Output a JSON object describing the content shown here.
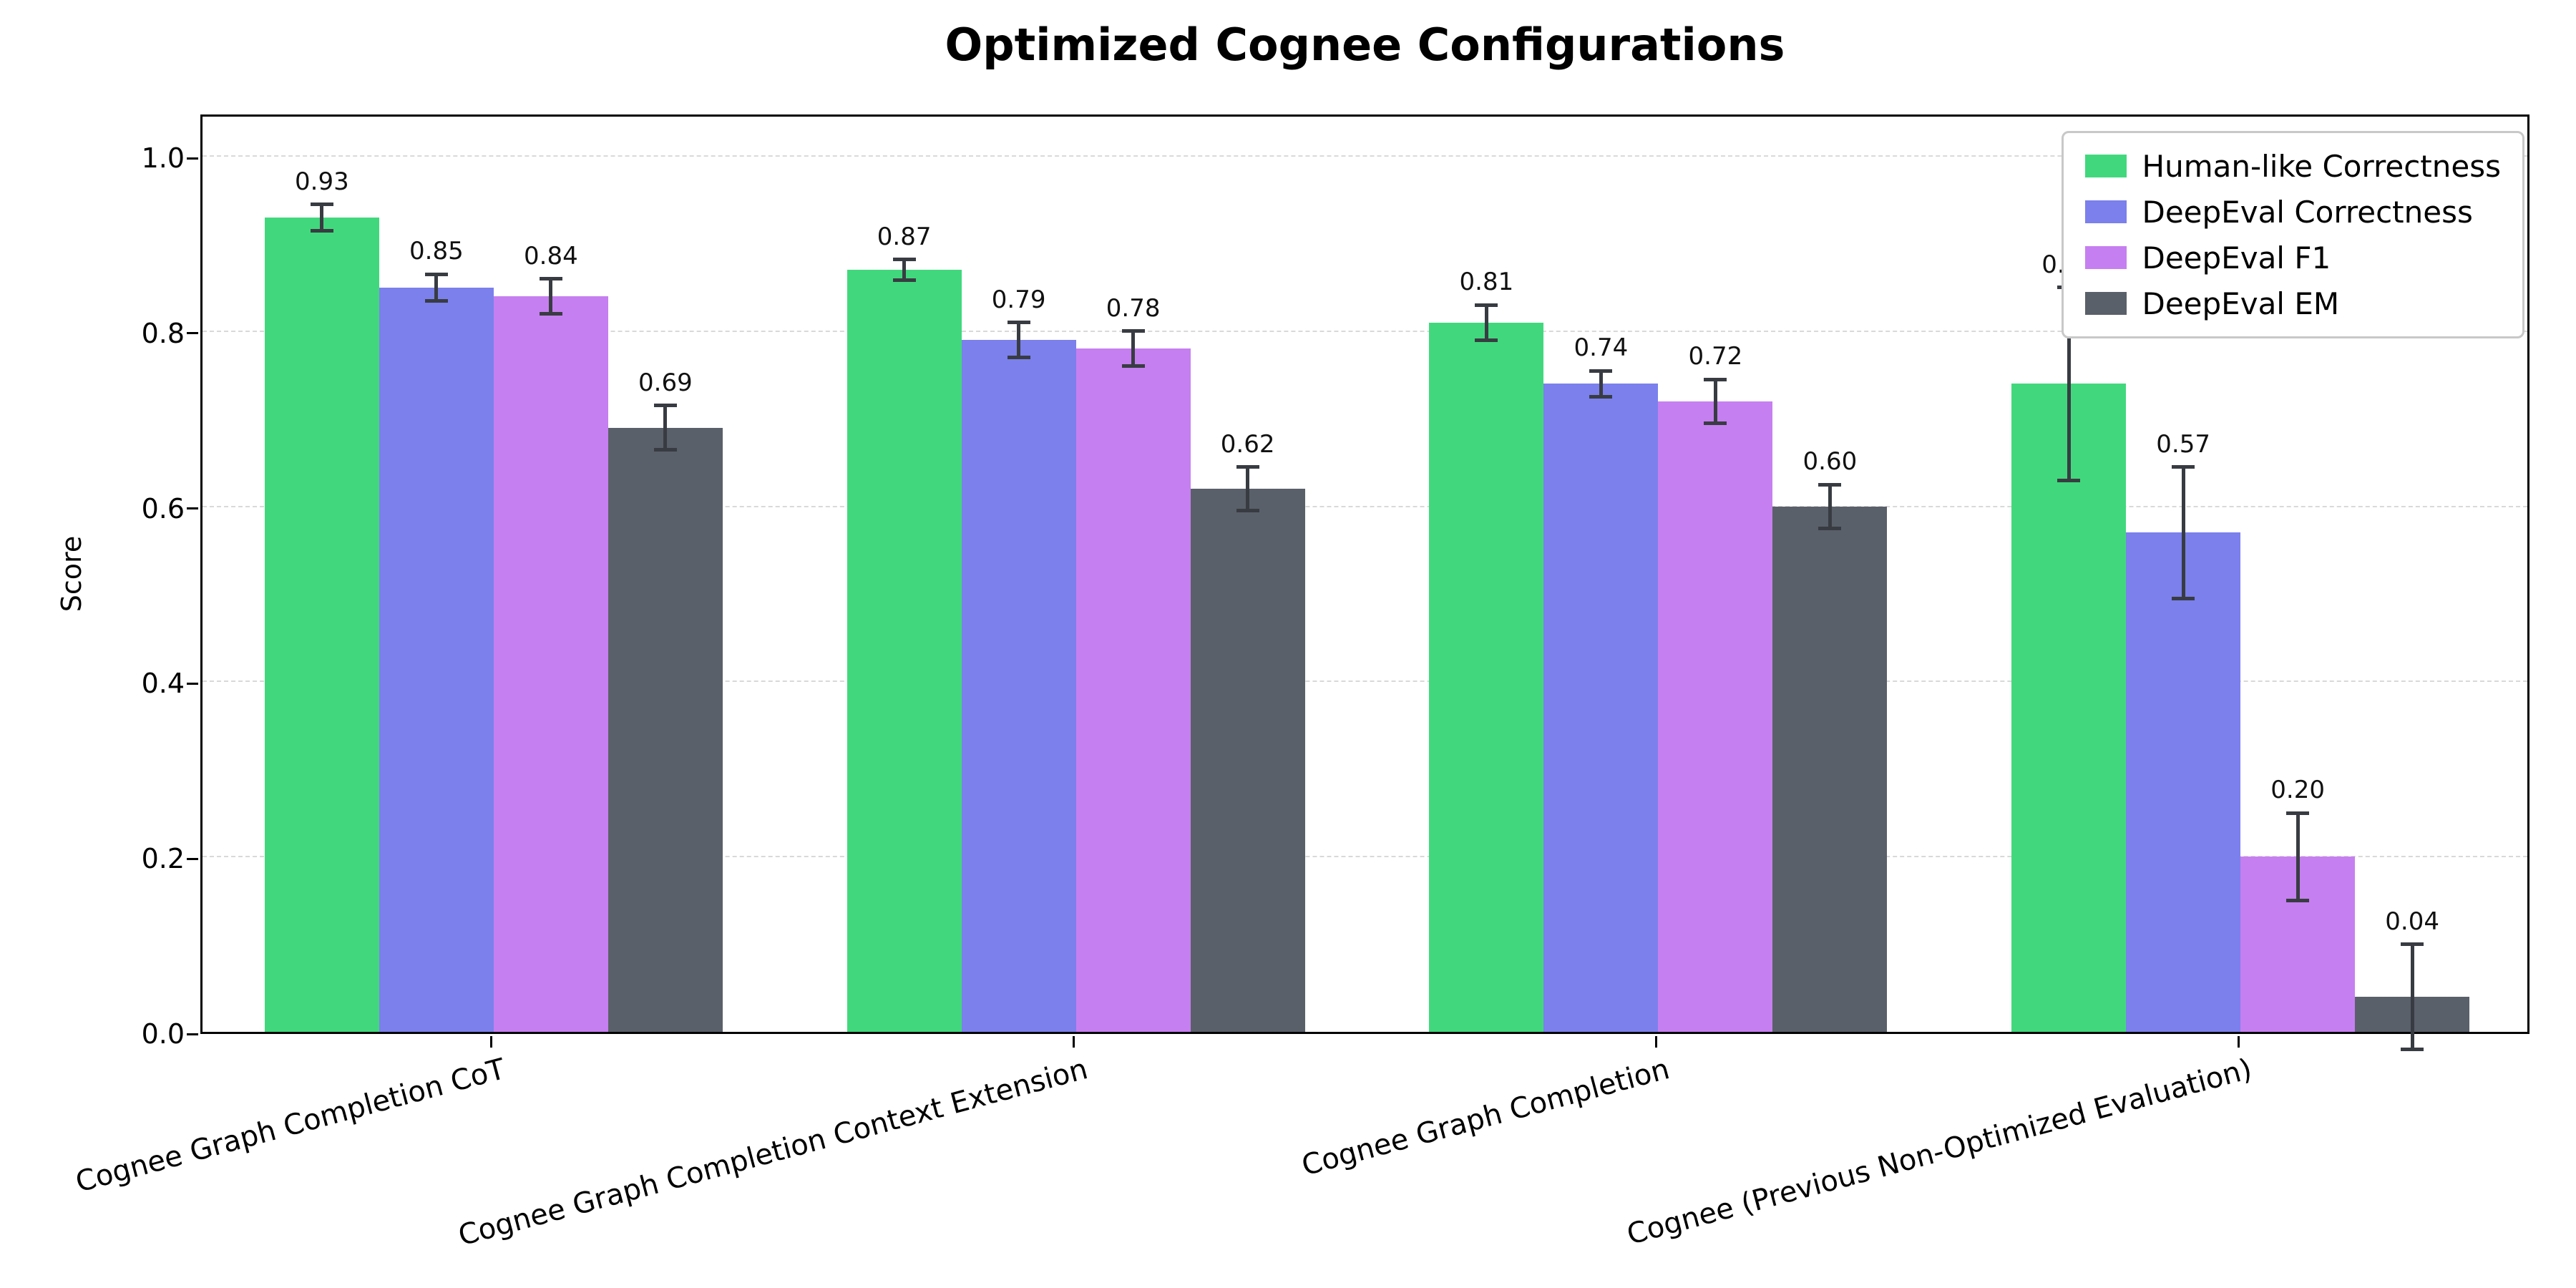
{
  "chart_data": {
    "type": "bar",
    "title": "Optimized Cognee Configurations",
    "xlabel": "",
    "ylabel": "Score",
    "ylim": [
      0,
      1.05
    ],
    "yticks": [
      0.0,
      0.2,
      0.4,
      0.6,
      0.8,
      1.0
    ],
    "grid": "horizontal-dashed",
    "legend_position": "upper-right",
    "error_bars": true,
    "categories": [
      "Cognee Graph Completion CoT",
      "Cognee Graph Completion Context Extension",
      "Cognee Graph Completion",
      "Cognee (Previous Non-Optimized Evaluation)"
    ],
    "series": [
      {
        "name": "Human-like Correctness",
        "color": "#41d87d",
        "values": [
          0.93,
          0.87,
          0.81,
          0.74
        ],
        "errors": [
          0.015,
          0.012,
          0.02,
          0.11
        ]
      },
      {
        "name": "DeepEval Correctness",
        "color": "#7b80ec",
        "values": [
          0.85,
          0.79,
          0.74,
          0.57
        ],
        "errors": [
          0.015,
          0.02,
          0.015,
          0.075
        ]
      },
      {
        "name": "DeepEval F1",
        "color": "#c67ff0",
        "values": [
          0.84,
          0.78,
          0.72,
          0.2
        ],
        "errors": [
          0.02,
          0.02,
          0.025,
          0.05
        ]
      },
      {
        "name": "DeepEval EM",
        "color": "#5a6069",
        "values": [
          0.69,
          0.62,
          0.6,
          0.04
        ],
        "errors": [
          0.025,
          0.025,
          0.025,
          0.06
        ]
      }
    ]
  }
}
